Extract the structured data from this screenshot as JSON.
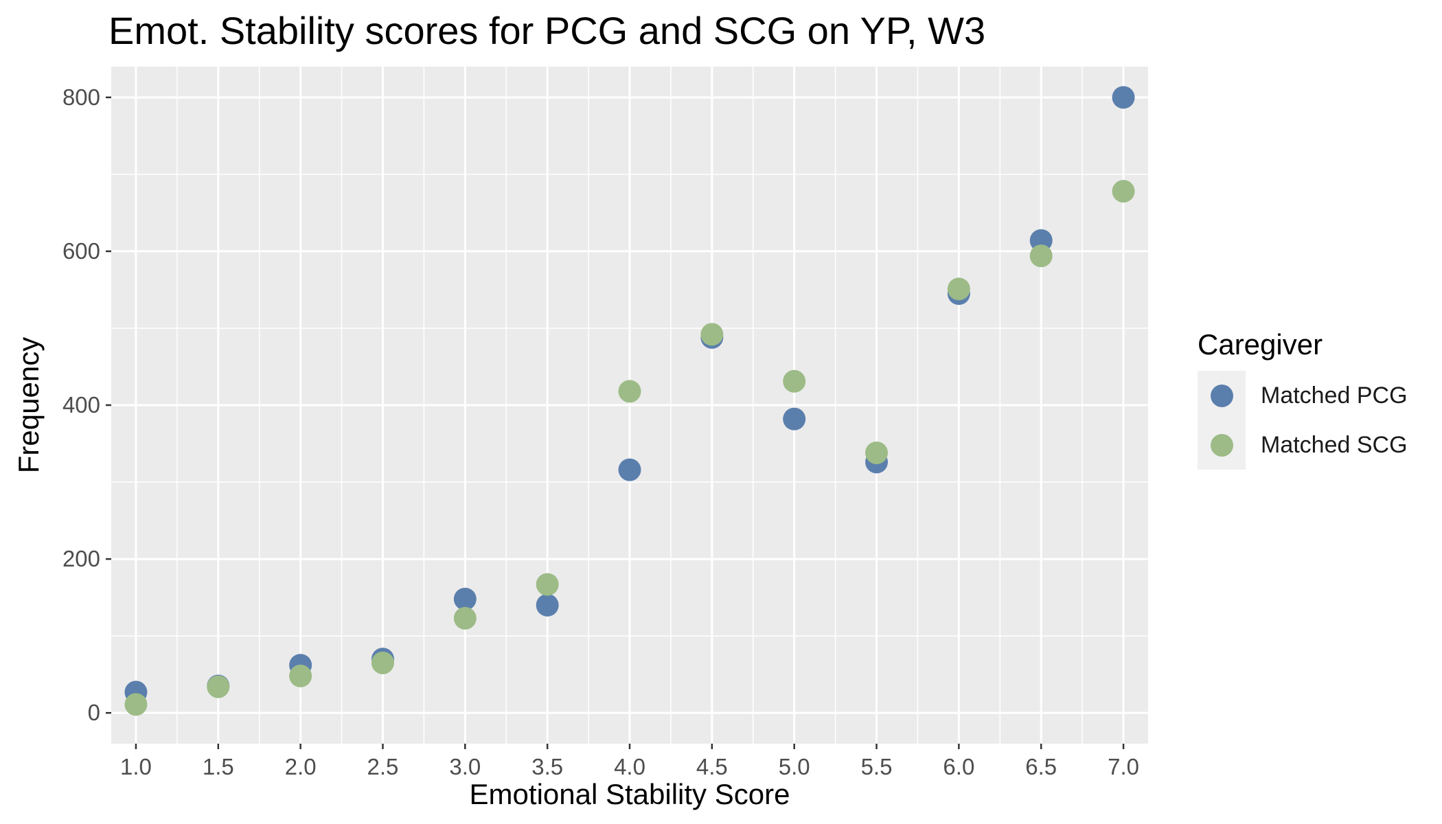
{
  "chart_data": {
    "type": "scatter",
    "title": "Emot. Stability scores for PCG and SCG on YP, W3",
    "xlabel": "Emotional Stability Score",
    "ylabel": "Frequency",
    "xlim": [
      0.85,
      7.15
    ],
    "ylim": [
      -40,
      840
    ],
    "x_ticks": [
      "1.0",
      "1.5",
      "2.0",
      "2.5",
      "3.0",
      "3.5",
      "4.0",
      "4.5",
      "5.0",
      "5.5",
      "6.0",
      "6.5",
      "7.0"
    ],
    "y_ticks": [
      "0",
      "200",
      "400",
      "600",
      "800"
    ],
    "grid": true,
    "legend": {
      "title": "Caregiver",
      "placement": "right"
    },
    "x": [
      1.0,
      1.5,
      2.0,
      2.5,
      3.0,
      3.5,
      4.0,
      4.5,
      5.0,
      5.5,
      6.0,
      6.5,
      7.0
    ],
    "series": [
      {
        "name": "Matched PCG",
        "color": "#5b7fad",
        "values": [
          27,
          35,
          62,
          70,
          148,
          140,
          316,
          488,
          382,
          326,
          545,
          614,
          800
        ]
      },
      {
        "name": "Matched SCG",
        "color": "#9dbb86",
        "values": [
          11,
          34,
          48,
          65,
          123,
          167,
          418,
          492,
          431,
          338,
          551,
          594,
          678
        ]
      }
    ]
  }
}
